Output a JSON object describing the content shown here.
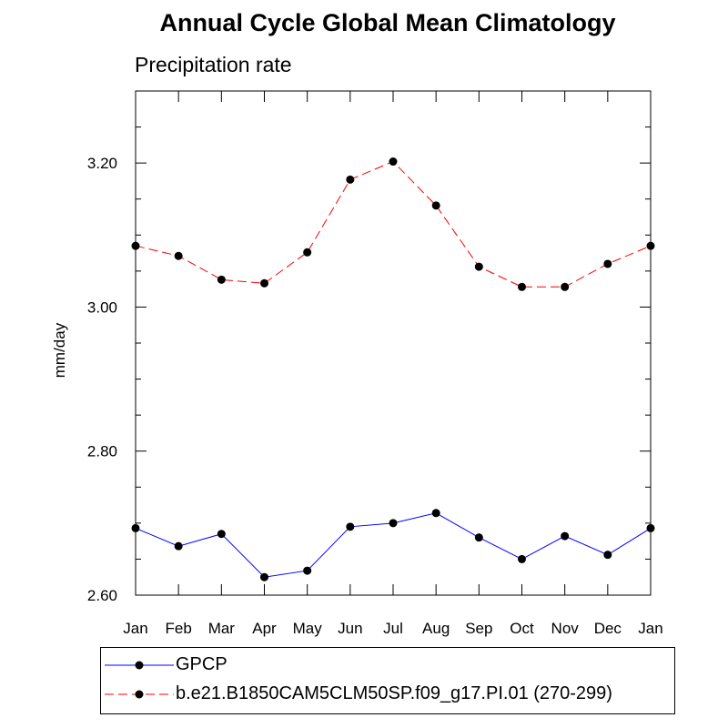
{
  "chart_data": {
    "type": "line",
    "title": "Annual Cycle Global Mean Climatology",
    "subtitle": "Precipitation rate",
    "xlabel": "",
    "ylabel": "mm/day",
    "categories": [
      "Jan",
      "Feb",
      "Mar",
      "Apr",
      "May",
      "Jun",
      "Jul",
      "Aug",
      "Sep",
      "Oct",
      "Nov",
      "Dec",
      "Jan"
    ],
    "ylim": [
      2.6,
      3.3
    ],
    "yticks": [
      2.6,
      2.8,
      3.0,
      3.2
    ],
    "ytick_labels": [
      "2.60",
      "2.80",
      "3.00",
      "3.20"
    ],
    "grid": false,
    "legend_position": "bottom",
    "series": [
      {
        "name": "GPCP",
        "color": "#0000ff",
        "dash": "solid",
        "values": [
          2.693,
          2.668,
          2.685,
          2.625,
          2.634,
          2.695,
          2.7,
          2.714,
          2.68,
          2.65,
          2.682,
          2.656,
          2.693
        ]
      },
      {
        "name": "b.e21.B1850CAM5CLM50SP.f09_g17.PI.01 (270-299)",
        "color": "#ff0000",
        "dash": "dashed",
        "values": [
          3.085,
          3.071,
          3.038,
          3.033,
          3.076,
          3.177,
          3.202,
          3.141,
          3.056,
          3.028,
          3.028,
          3.06,
          3.085
        ]
      }
    ]
  }
}
